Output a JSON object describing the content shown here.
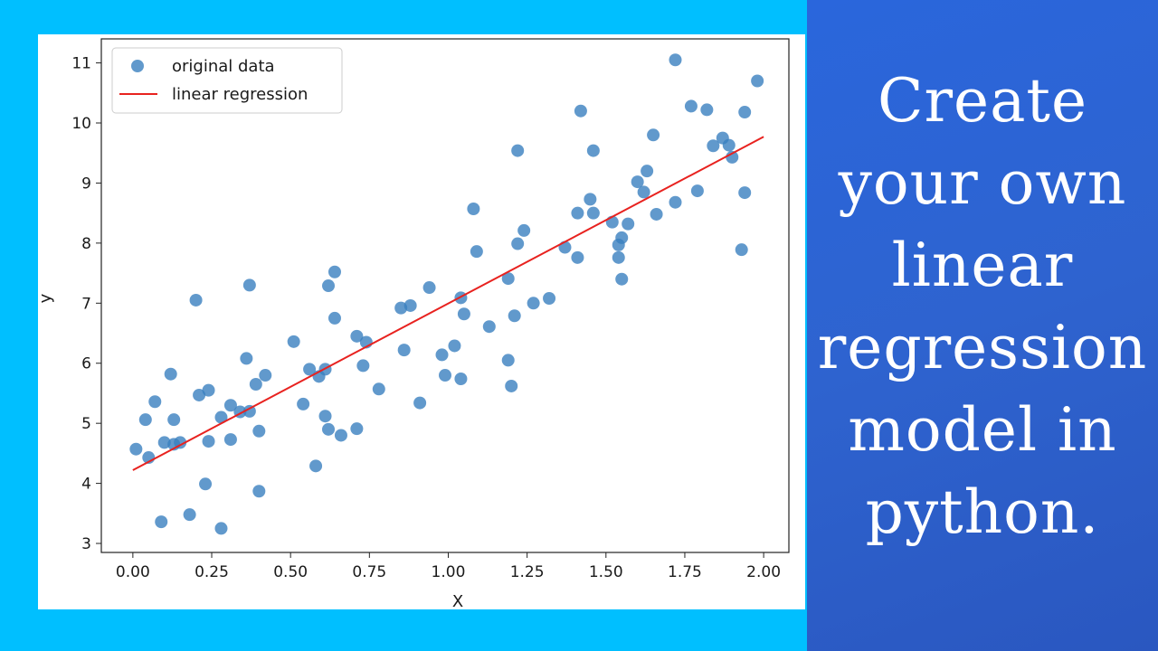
{
  "headline": {
    "lines": [
      "Create",
      "your own",
      "linear",
      "regression",
      "model in",
      "python."
    ]
  },
  "colors": {
    "left_background": "#00bfff",
    "right_background": "#2e63cf",
    "point_color": "#3a7fbf",
    "line_color": "#e8221f"
  },
  "chart_data": {
    "type": "scatter",
    "xlabel": "X",
    "ylabel": "y",
    "xlim": [
      -0.1,
      2.08
    ],
    "ylim": [
      2.85,
      11.4
    ],
    "xticks": [
      "0.00",
      "0.25",
      "0.50",
      "0.75",
      "1.00",
      "1.25",
      "1.50",
      "1.75",
      "2.00"
    ],
    "yticks": [
      "3",
      "4",
      "5",
      "6",
      "7",
      "8",
      "9",
      "10",
      "11"
    ],
    "grid": false,
    "legend": {
      "placement": "top-left",
      "entries": [
        {
          "label": "original data",
          "kind": "marker"
        },
        {
          "label": "linear regression",
          "kind": "line"
        }
      ]
    },
    "series": [
      {
        "name": "original data",
        "kind": "scatter",
        "points": [
          [
            0.01,
            4.57
          ],
          [
            0.04,
            5.06
          ],
          [
            0.05,
            4.43
          ],
          [
            0.07,
            5.36
          ],
          [
            0.09,
            3.36
          ],
          [
            0.1,
            4.68
          ],
          [
            0.12,
            5.82
          ],
          [
            0.13,
            5.06
          ],
          [
            0.13,
            4.65
          ],
          [
            0.15,
            4.68
          ],
          [
            0.18,
            3.48
          ],
          [
            0.2,
            7.05
          ],
          [
            0.21,
            5.47
          ],
          [
            0.23,
            3.99
          ],
          [
            0.24,
            5.55
          ],
          [
            0.24,
            4.7
          ],
          [
            0.28,
            5.1
          ],
          [
            0.28,
            3.25
          ],
          [
            0.31,
            5.3
          ],
          [
            0.31,
            4.73
          ],
          [
            0.34,
            5.19
          ],
          [
            0.36,
            6.08
          ],
          [
            0.37,
            7.3
          ],
          [
            0.37,
            5.2
          ],
          [
            0.39,
            5.65
          ],
          [
            0.4,
            4.87
          ],
          [
            0.4,
            3.87
          ],
          [
            0.42,
            5.8
          ],
          [
            0.51,
            6.36
          ],
          [
            0.54,
            5.32
          ],
          [
            0.56,
            5.9
          ],
          [
            0.58,
            4.29
          ],
          [
            0.59,
            5.78
          ],
          [
            0.61,
            5.12
          ],
          [
            0.61,
            5.9
          ],
          [
            0.62,
            7.29
          ],
          [
            0.62,
            4.9
          ],
          [
            0.64,
            6.75
          ],
          [
            0.64,
            7.52
          ],
          [
            0.66,
            4.8
          ],
          [
            0.71,
            4.91
          ],
          [
            0.71,
            6.45
          ],
          [
            0.73,
            5.96
          ],
          [
            0.74,
            6.35
          ],
          [
            0.78,
            5.57
          ],
          [
            0.85,
            6.92
          ],
          [
            0.86,
            6.22
          ],
          [
            0.88,
            6.96
          ],
          [
            0.91,
            5.34
          ],
          [
            0.94,
            7.26
          ],
          [
            0.98,
            6.14
          ],
          [
            0.99,
            5.8
          ],
          [
            1.02,
            6.29
          ],
          [
            1.04,
            5.74
          ],
          [
            1.04,
            7.09
          ],
          [
            1.05,
            6.82
          ],
          [
            1.08,
            8.57
          ],
          [
            1.09,
            7.86
          ],
          [
            1.13,
            6.61
          ],
          [
            1.19,
            7.41
          ],
          [
            1.19,
            6.05
          ],
          [
            1.2,
            5.62
          ],
          [
            1.21,
            6.79
          ],
          [
            1.22,
            9.54
          ],
          [
            1.22,
            7.99
          ],
          [
            1.24,
            8.21
          ],
          [
            1.27,
            7.0
          ],
          [
            1.32,
            7.08
          ],
          [
            1.37,
            7.93
          ],
          [
            1.41,
            8.5
          ],
          [
            1.41,
            7.76
          ],
          [
            1.42,
            10.2
          ],
          [
            1.45,
            8.73
          ],
          [
            1.46,
            9.54
          ],
          [
            1.46,
            8.5
          ],
          [
            1.52,
            8.35
          ],
          [
            1.54,
            7.97
          ],
          [
            1.54,
            7.76
          ],
          [
            1.55,
            8.09
          ],
          [
            1.55,
            7.4
          ],
          [
            1.57,
            8.32
          ],
          [
            1.6,
            9.02
          ],
          [
            1.62,
            8.85
          ],
          [
            1.63,
            9.2
          ],
          [
            1.65,
            9.8
          ],
          [
            1.66,
            8.48
          ],
          [
            1.72,
            8.68
          ],
          [
            1.72,
            11.05
          ],
          [
            1.77,
            10.28
          ],
          [
            1.79,
            8.87
          ],
          [
            1.82,
            10.22
          ],
          [
            1.84,
            9.62
          ],
          [
            1.87,
            9.75
          ],
          [
            1.89,
            9.63
          ],
          [
            1.9,
            9.43
          ],
          [
            1.93,
            7.89
          ],
          [
            1.94,
            10.18
          ],
          [
            1.94,
            8.84
          ],
          [
            1.98,
            10.7
          ]
        ]
      },
      {
        "name": "linear regression",
        "kind": "line",
        "points": [
          [
            0.0,
            4.22
          ],
          [
            2.0,
            9.77
          ]
        ]
      }
    ]
  }
}
